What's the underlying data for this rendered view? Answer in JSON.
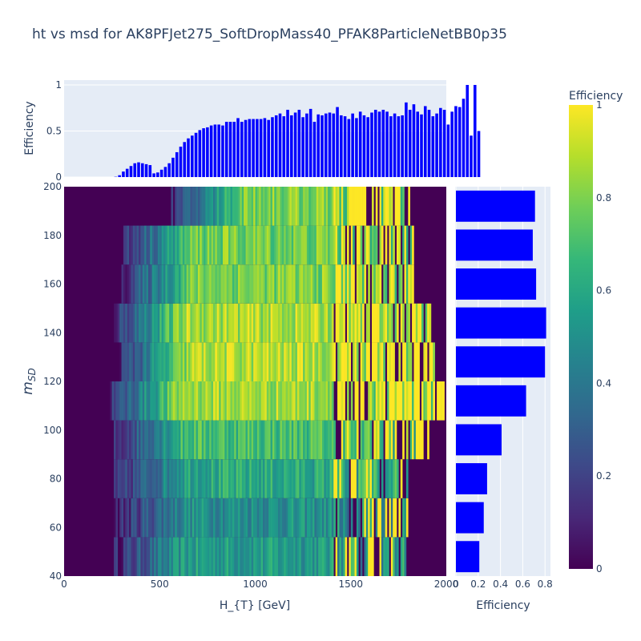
{
  "figure": {
    "title": "ht vs msd for AK8PFJet275_SoftDropMass40_PFAK8ParticleNetBB0p35"
  },
  "colors": {
    "bar": "#0000ff",
    "panel_bg": "#e5ecf6",
    "text": "#2a3f5f",
    "colorscale": [
      "#440154",
      "#482878",
      "#3e4989",
      "#31688e",
      "#26828e",
      "#1f9e89",
      "#35b779",
      "#6ece58",
      "#b5de2b",
      "#fde725"
    ]
  },
  "chart_data": [
    {
      "type": "bar",
      "name": "top-histogram",
      "x_range": [
        0,
        2000
      ],
      "bin_width": 20,
      "ylabel": "Efficiency",
      "ylim": [
        0,
        1.05
      ],
      "y_ticks": [
        "0",
        "0.5",
        "1"
      ],
      "x_first": 10,
      "values": [
        0,
        0,
        0,
        0,
        0,
        0,
        0,
        0,
        0,
        0,
        0,
        0,
        0,
        0.003,
        0.02,
        0.06,
        0.09,
        0.12,
        0.15,
        0.16,
        0.15,
        0.14,
        0.13,
        0.04,
        0.05,
        0.08,
        0.11,
        0.15,
        0.21,
        0.27,
        0.33,
        0.38,
        0.42,
        0.45,
        0.48,
        0.51,
        0.53,
        0.54,
        0.56,
        0.57,
        0.57,
        0.56,
        0.6,
        0.6,
        0.6,
        0.64,
        0.6,
        0.62,
        0.63,
        0.63,
        0.63,
        0.63,
        0.64,
        0.62,
        0.65,
        0.67,
        0.69,
        0.66,
        0.73,
        0.67,
        0.7,
        0.73,
        0.65,
        0.69,
        0.74,
        0.6,
        0.68,
        0.67,
        0.69,
        0.7,
        0.69,
        0.76,
        0.67,
        0.66,
        0.63,
        0.69,
        0.64,
        0.71,
        0.67,
        0.65,
        0.7,
        0.73,
        0.71,
        0.73,
        0.71,
        0.66,
        0.69,
        0.66,
        0.67,
        0.81,
        0.73,
        0.79,
        0.71,
        0.68,
        0.77,
        0.73,
        0.66,
        0.69,
        0.75,
        0.73,
        0.57,
        0.71,
        0.77,
        0.76,
        0.85,
        1.0,
        0.45,
        1.0,
        0.5
      ]
    },
    {
      "type": "heatmap",
      "name": "efficiency-map",
      "xlabel": "H_{T} [GeV]",
      "ylabel": "m_SD",
      "xlim": [
        0,
        2000
      ],
      "ylim": [
        40,
        200
      ],
      "x_ticks": [
        "0",
        "500",
        "1000",
        "1500",
        "2000"
      ],
      "y_ticks": [
        "40",
        "60",
        "80",
        "100",
        "120",
        "140",
        "160",
        "180",
        "200"
      ],
      "zlim": [
        0,
        1
      ],
      "x_bin_width": 10,
      "y_bins": [
        [
          40,
          56
        ],
        [
          56,
          72
        ],
        [
          72,
          88
        ],
        [
          88,
          104
        ],
        [
          104,
          120
        ],
        [
          120,
          136
        ],
        [
          136,
          152
        ],
        [
          152,
          168
        ],
        [
          168,
          184
        ],
        [
          184,
          200
        ]
      ]
    },
    {
      "type": "bar",
      "name": "side-histogram",
      "orientation": "h",
      "xlabel": "Efficiency",
      "xlim": [
        0,
        0.82
      ],
      "x_ticks": [
        "0",
        "0.2",
        "0.4",
        "0.6",
        "0.8"
      ],
      "categories": [
        48,
        64,
        80,
        96,
        112,
        128,
        144,
        160,
        176,
        192
      ],
      "values": [
        0.21,
        0.25,
        0.28,
        0.41,
        0.63,
        0.8,
        0.81,
        0.72,
        0.69,
        0.71
      ]
    },
    {
      "type": "colorbar",
      "name": "colorbar",
      "title": "Efficiency",
      "ticks": [
        "0",
        "0.2",
        "0.4",
        "0.6",
        "0.8",
        "1"
      ]
    }
  ]
}
